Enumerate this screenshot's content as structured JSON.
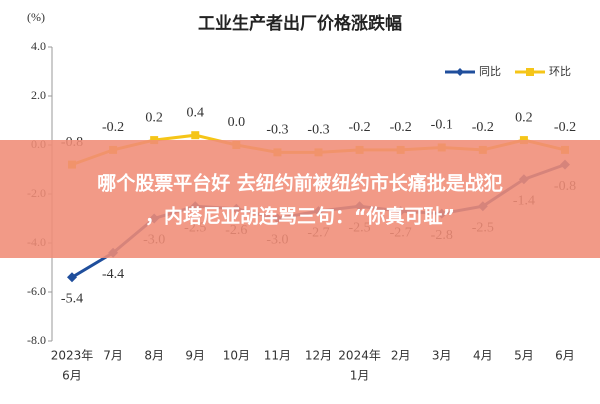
{
  "chart_data": {
    "type": "line",
    "title": "工业生产者出厂价格涨跌幅",
    "y_unit": "(%)",
    "categories": [
      [
        "2023年",
        "6月"
      ],
      [
        "7月"
      ],
      [
        "8月"
      ],
      [
        "9月"
      ],
      [
        "10月"
      ],
      [
        "11月"
      ],
      [
        "12月"
      ],
      [
        "2024年",
        "1月"
      ],
      [
        "2月"
      ],
      [
        "3月"
      ],
      [
        "4月"
      ],
      [
        "5月"
      ],
      [
        "6月"
      ]
    ],
    "series": [
      {
        "name": "同比",
        "color": "#1f4e9c",
        "marker": "diamond",
        "label_side": "below",
        "values": [
          -5.4,
          -4.4,
          -3.0,
          -2.5,
          -2.6,
          -3.0,
          -2.7,
          -2.5,
          -2.7,
          -2.8,
          -2.5,
          -1.4,
          -0.8
        ],
        "value_labels": [
          "-5.4",
          "-4.4",
          "-3.0",
          "-2.5",
          "-2.6",
          "-3.0",
          "-2.7",
          "-2.5",
          "-2.7",
          "-2.8",
          "-2.5",
          "-1.4",
          "-0.8"
        ]
      },
      {
        "name": "环比",
        "color": "#f5c518",
        "marker": "square",
        "label_side": "above",
        "values": [
          -0.8,
          -0.2,
          0.2,
          0.4,
          0.0,
          -0.3,
          -0.3,
          -0.2,
          -0.2,
          -0.1,
          -0.2,
          0.2,
          -0.2
        ],
        "value_labels": [
          "-0.8",
          "-0.2",
          "0.2",
          "0.4",
          "0.0",
          "-0.3",
          "-0.3",
          "-0.2",
          "-0.2",
          "-0.1",
          "-0.2",
          "0.2",
          "-0.2"
        ]
      }
    ],
    "ylim": [
      -8,
      4
    ],
    "yticks": [
      {
        "value": 4,
        "label": "4.0"
      },
      {
        "value": 2,
        "label": "2.0"
      },
      {
        "value": 0,
        "label": "0.0"
      },
      {
        "value": -2,
        "label": "-2.0"
      },
      {
        "value": -4,
        "label": "-4.0"
      },
      {
        "value": -6,
        "label": "-6.0"
      },
      {
        "value": -8,
        "label": "-8.0"
      }
    ],
    "legend": "top-right"
  },
  "overlay": {
    "lines": [
      "哪个股票平台好 去纽约前被纽约市长痛批是战犯",
      "，内塔尼亚胡连骂三句：“你真可耻”"
    ]
  }
}
